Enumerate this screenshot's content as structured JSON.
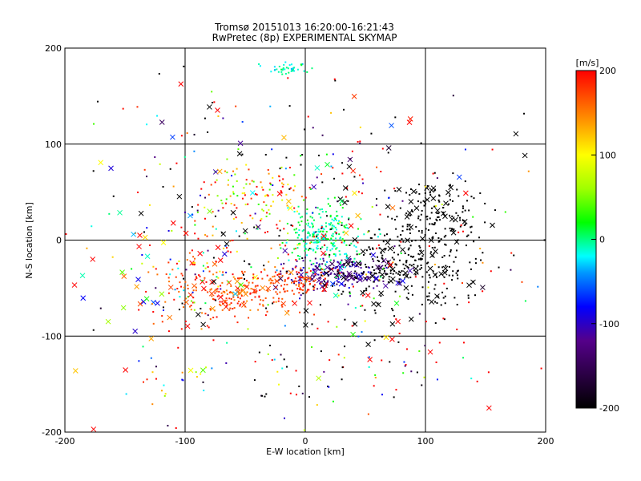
{
  "chart_data": {
    "type": "scatter",
    "title": "Tromsø 20151013 16:20:00-16:21:43",
    "subtitle": "RwPretec (8p) EXPERIMENTAL SKYMAP",
    "xlabel": "E-W location [km]",
    "ylabel": "N-S location [km]",
    "xlim": [
      -200,
      200
    ],
    "ylim": [
      -200,
      200
    ],
    "x_ticks": [
      "-200",
      "-100",
      "0",
      "100",
      "200"
    ],
    "y_ticks": [
      "-200",
      "-100",
      "0",
      "100",
      "200"
    ],
    "grid": true,
    "colorbar": {
      "label": "[m/s]",
      "range": [
        -200,
        200
      ],
      "ticks": [
        "200",
        "100",
        "0",
        "-100",
        "-200"
      ]
    },
    "clusters": [
      {
        "x": 25,
        "y": -35,
        "sx": 20,
        "sy": 8,
        "n": 150,
        "vel": -120,
        "jit": 40,
        "marker": "dot"
      },
      {
        "x": 30,
        "y": -35,
        "sx": 22,
        "sy": 9,
        "n": 45,
        "vel": -120,
        "jit": 40,
        "marker": "x"
      },
      {
        "x": 15,
        "y": 5,
        "sx": 15,
        "sy": 16,
        "n": 240,
        "vel": 0,
        "jit": 25,
        "marker": "dot"
      },
      {
        "x": -5,
        "y": -45,
        "sx": 10,
        "sy": 6,
        "n": 70,
        "vel": 180,
        "jit": 20,
        "marker": "dot"
      },
      {
        "x": -60,
        "y": -55,
        "sx": 28,
        "sy": 14,
        "n": 200,
        "vel": 170,
        "jit": 30,
        "marker": "dot"
      },
      {
        "x": -60,
        "y": -55,
        "sx": 32,
        "sy": 15,
        "n": 30,
        "vel": 170,
        "jit": 30,
        "marker": "x"
      },
      {
        "x": 80,
        "y": -30,
        "sx": 30,
        "sy": 22,
        "n": 220,
        "vel": -200,
        "jit": 0,
        "marker": "dot"
      },
      {
        "x": 80,
        "y": -30,
        "sx": 35,
        "sy": 24,
        "n": 40,
        "vel": -200,
        "jit": 0,
        "marker": "x"
      },
      {
        "x": 110,
        "y": 25,
        "sx": 20,
        "sy": 20,
        "n": 130,
        "vel": -200,
        "jit": 0,
        "marker": "dot"
      },
      {
        "x": 110,
        "y": 25,
        "sx": 22,
        "sy": 22,
        "n": 25,
        "vel": -200,
        "jit": 0,
        "marker": "x"
      },
      {
        "x": -15,
        "y": 178,
        "sx": 10,
        "sy": 3,
        "n": 40,
        "vel": -10,
        "jit": 25,
        "marker": "dot"
      },
      {
        "x": -45,
        "y": 45,
        "sx": 20,
        "sy": 15,
        "n": 90,
        "vel": 120,
        "jit": 100,
        "marker": "dot"
      },
      {
        "x": -90,
        "y": -20,
        "sx": 25,
        "sy": 30,
        "n": 60,
        "vel": 60,
        "jit": 150,
        "marker": "dot"
      },
      {
        "x": -120,
        "y": -40,
        "sx": 35,
        "sy": 40,
        "n": 35,
        "vel": 100,
        "jit": 200,
        "marker": "x"
      },
      {
        "x": 0,
        "y": 0,
        "sx": 90,
        "sy": 80,
        "n": 420,
        "vel": 0,
        "jit": 400,
        "marker": "dot"
      },
      {
        "x": 0,
        "y": 0,
        "sx": 100,
        "sy": 90,
        "n": 95,
        "vel": 0,
        "jit": 400,
        "marker": "x"
      },
      {
        "x": -110,
        "y": -140,
        "sx": 25,
        "sy": 15,
        "n": 25,
        "vel": 0,
        "jit": 200,
        "marker": "dot"
      },
      {
        "x": 40,
        "y": -140,
        "sx": 40,
        "sy": 25,
        "n": 40,
        "vel": 0,
        "jit": 300,
        "marker": "dot"
      }
    ]
  }
}
